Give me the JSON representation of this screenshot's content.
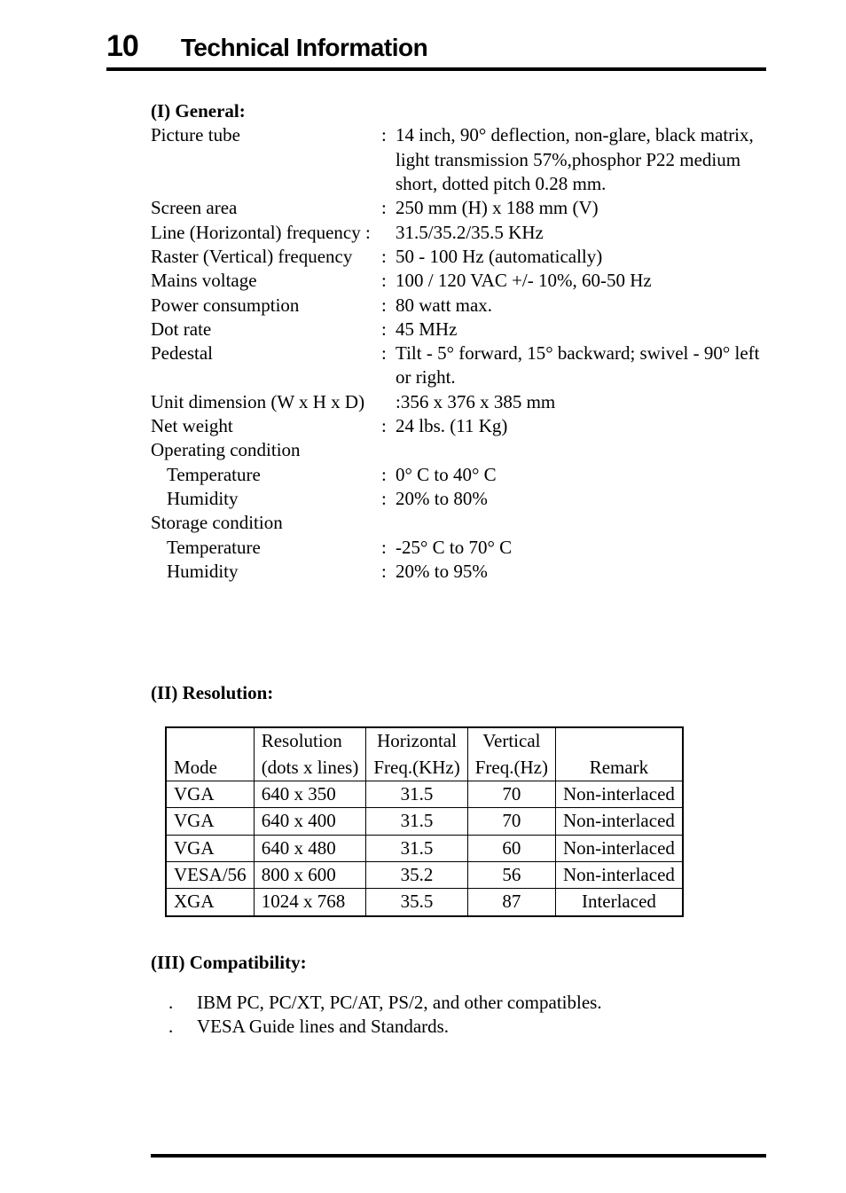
{
  "chapter": {
    "number": "10",
    "title": "Technical Information"
  },
  "general": {
    "heading": "(I)  General:",
    "rows": [
      {
        "label": "Picture tube",
        "colon": ":",
        "value": "14 inch, 90° deflection, non-glare, black matrix, light transmission 57%,phosphor P22 medium short, dotted pitch 0.28 mm."
      },
      {
        "label": "Screen area",
        "colon": ":",
        "value": "250 mm (H) x 188 mm (V)"
      },
      {
        "label": "Line (Horizontal) frequency :",
        "colon": "",
        "value": "31.5/35.2/35.5 KHz"
      },
      {
        "label": "Raster (Vertical) frequency",
        "colon": ":",
        "value": "50 - 100 Hz (automatically)"
      },
      {
        "label": "Mains voltage",
        "colon": ":",
        "value": "100 / 120 VAC +/- 10%, 60-50 Hz"
      },
      {
        "label": "Power consumption",
        "colon": ":",
        "value": "80 watt max."
      },
      {
        "label": "Dot rate",
        "colon": ":",
        "value": "45 MHz"
      },
      {
        "label": "Pedestal",
        "colon": ":",
        "value": "Tilt - 5° forward, 15° backward; swivel - 90° left or right."
      },
      {
        "label": "Unit dimension (W x H x D)",
        "colon": "",
        "value": ":356 x 376 x 385 mm"
      },
      {
        "label": "Net weight",
        "colon": ":",
        "value": "24 lbs. (11 Kg)"
      },
      {
        "label": "Operating condition",
        "colon": "",
        "value": ""
      },
      {
        "label": "Temperature",
        "colon": ":",
        "value": "0° C to 40° C",
        "indent": true
      },
      {
        "label": "Humidity",
        "colon": ":",
        "value": "20% to 80%",
        "indent": true
      },
      {
        "label": "Storage condition",
        "colon": "",
        "value": ""
      },
      {
        "label": "Temperature",
        "colon": ":",
        "value": "-25° C to 70° C",
        "indent": true
      },
      {
        "label": "Humidity",
        "colon": ":",
        "value": "20% to 95%",
        "indent": true
      }
    ]
  },
  "resolution": {
    "heading": "(II) Resolution:",
    "headers_top": [
      "",
      "Resolution",
      "Horizontal",
      "Vertical",
      ""
    ],
    "headers_bot": [
      "Mode",
      "(dots x lines)",
      "Freq.(KHz)",
      "Freq.(Hz)",
      "Remark"
    ],
    "rows": [
      {
        "mode": "VGA",
        "res": "640 x 350",
        "h": "31.5",
        "v": "70",
        "remark": "Non-interlaced"
      },
      {
        "mode": "VGA",
        "res": "640 x 400",
        "h": "31.5",
        "v": "70",
        "remark": "Non-interlaced"
      },
      {
        "mode": "VGA",
        "res": "640 x 480",
        "h": "31.5",
        "v": "60",
        "remark": "Non-interlaced"
      },
      {
        "mode": "VESA/56",
        "res": "800 x 600",
        "h": "35.2",
        "v": "56",
        "remark": "Non-interlaced"
      },
      {
        "mode": "XGA",
        "res": "1024 x 768",
        "h": "35.5",
        "v": "87",
        "remark": "Interlaced"
      }
    ],
    "col_align": [
      "left",
      "left",
      "center",
      "center",
      "center"
    ]
  },
  "compat": {
    "heading": "(III) Compatibility:",
    "items": [
      "IBM PC, PC/XT, PC/AT, PS/2, and other compatibles.",
      "VESA Guide lines and Standards."
    ]
  }
}
